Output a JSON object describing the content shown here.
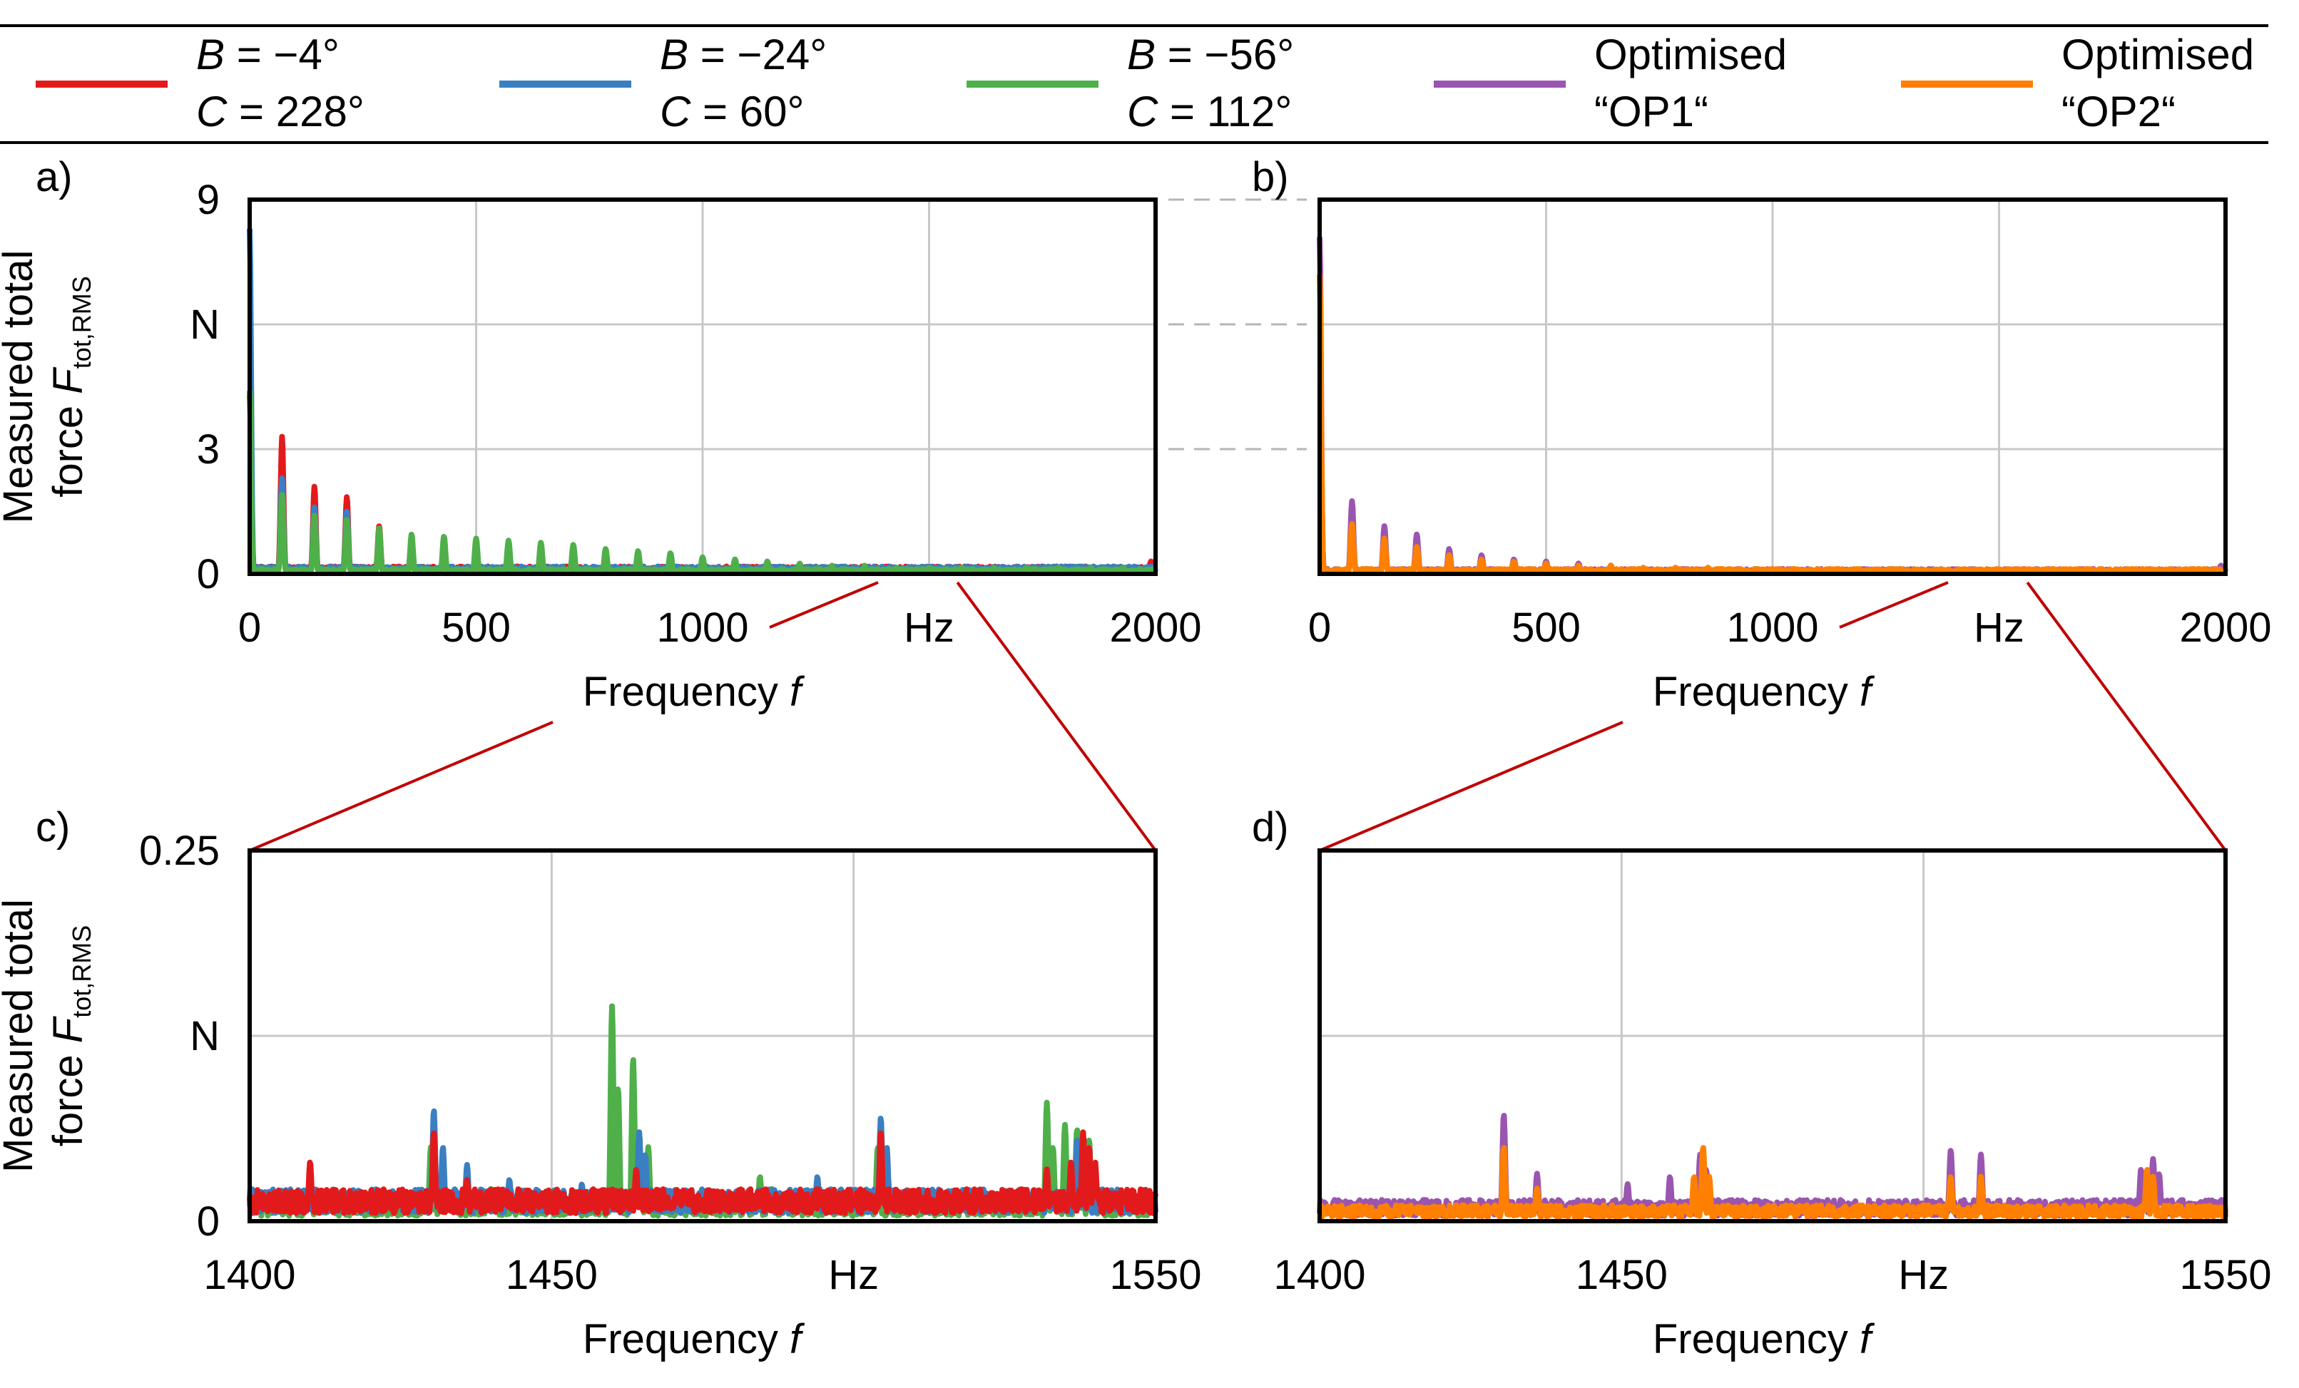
{
  "legend": [
    {
      "name": "B = −4° C = 228°",
      "line1": {
        "sym": "B",
        "rest": " = −4°"
      },
      "line2": {
        "sym": "C",
        "rest": " = 228°"
      },
      "color": "#e31a1c"
    },
    {
      "name": "B = −24° C = 60°",
      "line1": {
        "sym": "B",
        "rest": " = −24°"
      },
      "line2": {
        "sym": "C",
        "rest": " = 60°"
      },
      "color": "#3a7fc1"
    },
    {
      "name": "B = −56° C = 112°",
      "line1": {
        "sym": "B",
        "rest": " = −56°"
      },
      "line2": {
        "sym": "C",
        "rest": " = 112°"
      },
      "color": "#4fb04a"
    },
    {
      "name": "Optimised “OP1“",
      "line1": {
        "sym": "",
        "rest": "Optimised"
      },
      "line2": {
        "sym": "",
        "rest": "“OP1“"
      },
      "color": "#9a55b0"
    },
    {
      "name": "Optimised “OP2“",
      "line1": {
        "sym": "",
        "rest": "Optimised"
      },
      "line2": {
        "sym": "",
        "rest": "“OP2“"
      },
      "color": "#ff8000"
    }
  ],
  "zoom_connector_color": "#c00000",
  "chart_data": [
    {
      "panel": "a)",
      "type": "line",
      "xlabel": {
        "text": "Frequency ",
        "sym": "f"
      },
      "ylabel": {
        "line1": "Measured total",
        "line2_text": "force ",
        "line2_sym": "F",
        "line2_sub": "tot,RMS"
      },
      "xlim": [
        0,
        2000
      ],
      "ylim": [
        0,
        9
      ],
      "xticks": [
        "0",
        "500",
        "1000",
        "Hz",
        "2000"
      ],
      "yticks": [
        "0",
        "3",
        "N",
        "9"
      ],
      "grid": true,
      "series": [
        {
          "name": "B = −4° C = 228°",
          "color": "#e31a1c",
          "baseline": 0.15,
          "peaks": [
            [
              0,
              4.3
            ],
            [
              71.5,
              3.3
            ],
            [
              143,
              2.1
            ],
            [
              214.5,
              1.85
            ],
            [
              286,
              1.15
            ],
            [
              357.5,
              0.85
            ],
            [
              429,
              0.5
            ],
            [
              500,
              0.45
            ],
            [
              571.5,
              0.35
            ],
            [
              643,
              0.3
            ],
            [
              1990,
              0.3
            ]
          ]
        },
        {
          "name": "B = −24° C = 60°",
          "color": "#3a7fc1",
          "baseline": 0.15,
          "peaks": [
            [
              0,
              8.3
            ],
            [
              71.5,
              2.3
            ],
            [
              143,
              1.6
            ],
            [
              214.5,
              1.5
            ],
            [
              286,
              1.0
            ],
            [
              357.5,
              0.8
            ],
            [
              429,
              0.5
            ],
            [
              500,
              0.45
            ],
            [
              571.5,
              0.4
            ],
            [
              643,
              0.3
            ]
          ]
        },
        {
          "name": "B = −56° C = 112°",
          "color": "#4fb04a",
          "baseline": 0.1,
          "peaks": [
            [
              0,
              4.4
            ],
            [
              71.5,
              1.9
            ],
            [
              143,
              1.4
            ],
            [
              214.5,
              1.3
            ],
            [
              286,
              1.1
            ],
            [
              357.5,
              0.95
            ],
            [
              429,
              0.9
            ],
            [
              500,
              0.85
            ],
            [
              571.5,
              0.8
            ],
            [
              643,
              0.75
            ],
            [
              714.5,
              0.7
            ],
            [
              786,
              0.6
            ],
            [
              857.5,
              0.55
            ],
            [
              929,
              0.5
            ],
            [
              1000,
              0.4
            ],
            [
              1071.5,
              0.35
            ],
            [
              1143,
              0.3
            ],
            [
              1214.5,
              0.25
            ],
            [
              1286,
              0.2
            ],
            [
              1357.5,
              0.2
            ],
            [
              1429,
              0.15
            ],
            [
              1500,
              0.15
            ],
            [
              1571.5,
              0.15
            ],
            [
              1643,
              0.15
            ],
            [
              1714.5,
              0.15
            ],
            [
              1786,
              0.15
            ],
            [
              1857.5,
              0.15
            ],
            [
              1929,
              0.15
            ]
          ]
        }
      ]
    },
    {
      "panel": "b)",
      "type": "line",
      "xlabel": {
        "text": "Frequency ",
        "sym": "f"
      },
      "xlim": [
        0,
        2000
      ],
      "ylim": [
        0,
        9
      ],
      "xticks": [
        "0",
        "500",
        "1000",
        "Hz",
        "2000"
      ],
      "grid": true,
      "series": [
        {
          "name": "Optimised “OP1“",
          "color": "#9a55b0",
          "baseline": 0.1,
          "peaks": [
            [
              0,
              8.1
            ],
            [
              71.5,
              1.75
            ],
            [
              143,
              1.15
            ],
            [
              214.5,
              0.95
            ],
            [
              286,
              0.6
            ],
            [
              357.5,
              0.45
            ],
            [
              429,
              0.35
            ],
            [
              500,
              0.3
            ],
            [
              571.5,
              0.25
            ],
            [
              643,
              0.2
            ],
            [
              1990,
              0.2
            ]
          ]
        },
        {
          "name": "Optimised “OP2“",
          "color": "#ff8000",
          "baseline": 0.1,
          "peaks": [
            [
              0,
              7.2
            ],
            [
              71.5,
              1.2
            ],
            [
              143,
              0.85
            ],
            [
              214.5,
              0.65
            ],
            [
              286,
              0.45
            ],
            [
              357.5,
              0.35
            ],
            [
              429,
              0.3
            ],
            [
              500,
              0.25
            ],
            [
              571.5,
              0.2
            ],
            [
              643,
              0.2
            ],
            [
              714.5,
              0.15
            ],
            [
              786,
              0.15
            ],
            [
              857.5,
              0.15
            ],
            [
              929,
              0.12
            ],
            [
              1000,
              0.12
            ]
          ]
        }
      ]
    },
    {
      "panel": "c)",
      "type": "line",
      "xlabel": {
        "text": "Frequency ",
        "sym": "f"
      },
      "ylabel": {
        "line1": "Measured total",
        "line2_text": "force ",
        "line2_sym": "F",
        "line2_sub": "tot,RMS"
      },
      "xlim": [
        1400,
        1550
      ],
      "ylim": [
        0,
        0.25
      ],
      "xticks": [
        "1400",
        "1450",
        "Hz",
        "1550"
      ],
      "yticks": [
        "0",
        "N",
        "0.25"
      ],
      "grid": true,
      "series": [
        {
          "name": "B = −56° C = 112°",
          "color": "#4fb04a",
          "baseline": 0.012,
          "peaks": [
            [
              1430,
              0.05
            ],
            [
              1440,
              0.022
            ],
            [
              1450,
              0.02
            ],
            [
              1460,
              0.145
            ],
            [
              1461,
              0.09
            ],
            [
              1463.5,
              0.11
            ],
            [
              1464.5,
              0.06
            ],
            [
              1466,
              0.05
            ],
            [
              1484.5,
              0.03
            ],
            [
              1486.5,
              0.022
            ],
            [
              1504,
              0.05
            ],
            [
              1532,
              0.08
            ],
            [
              1533,
              0.05
            ],
            [
              1535,
              0.065
            ],
            [
              1537,
              0.062
            ],
            [
              1539,
              0.055
            ]
          ]
        },
        {
          "name": "B = −24° C = 60°",
          "color": "#3a7fc1",
          "baseline": 0.018,
          "peaks": [
            [
              1430.5,
              0.075
            ],
            [
              1432,
              0.05
            ],
            [
              1436,
              0.038
            ],
            [
              1443,
              0.028
            ],
            [
              1455,
              0.025
            ],
            [
              1464.5,
              0.06
            ],
            [
              1465.5,
              0.045
            ],
            [
              1494,
              0.03
            ],
            [
              1504.5,
              0.07
            ],
            [
              1505.5,
              0.05
            ],
            [
              1537,
              0.055
            ],
            [
              1538,
              0.045
            ]
          ]
        },
        {
          "name": "B = −4° C = 228°",
          "color": "#e31a1c",
          "baseline": 0.018,
          "peaks": [
            [
              1410,
              0.04
            ],
            [
              1430.5,
              0.06
            ],
            [
              1436,
              0.028
            ],
            [
              1464,
              0.035
            ],
            [
              1504.5,
              0.06
            ],
            [
              1532,
              0.035
            ],
            [
              1536,
              0.04
            ],
            [
              1538,
              0.06
            ],
            [
              1539,
              0.05
            ],
            [
              1540,
              0.04
            ]
          ]
        }
      ]
    },
    {
      "panel": "d)",
      "type": "line",
      "xlabel": {
        "text": "Frequency ",
        "sym": "f"
      },
      "xlim": [
        1400,
        1550
      ],
      "ylim": [
        0,
        0.25
      ],
      "xticks": [
        "1400",
        "1450",
        "Hz",
        "1550"
      ],
      "grid": true,
      "series": [
        {
          "name": "Optimised “OP1“",
          "color": "#9a55b0",
          "baseline": 0.012,
          "peaks": [
            [
              1430.5,
              0.072
            ],
            [
              1436,
              0.032
            ],
            [
              1451,
              0.025
            ],
            [
              1458,
              0.03
            ],
            [
              1463,
              0.045
            ],
            [
              1464,
              0.035
            ],
            [
              1504.5,
              0.048
            ],
            [
              1509.5,
              0.045
            ],
            [
              1536,
              0.035
            ],
            [
              1538,
              0.042
            ],
            [
              1539,
              0.032
            ]
          ]
        },
        {
          "name": "Optimised “OP2“",
          "color": "#ff8000",
          "baseline": 0.009,
          "peaks": [
            [
              1430.5,
              0.05
            ],
            [
              1436,
              0.022
            ],
            [
              1462,
              0.03
            ],
            [
              1463.5,
              0.05
            ],
            [
              1464.5,
              0.03
            ],
            [
              1504.5,
              0.03
            ],
            [
              1509.5,
              0.03
            ],
            [
              1537,
              0.035
            ],
            [
              1538,
              0.03
            ]
          ]
        }
      ]
    }
  ]
}
